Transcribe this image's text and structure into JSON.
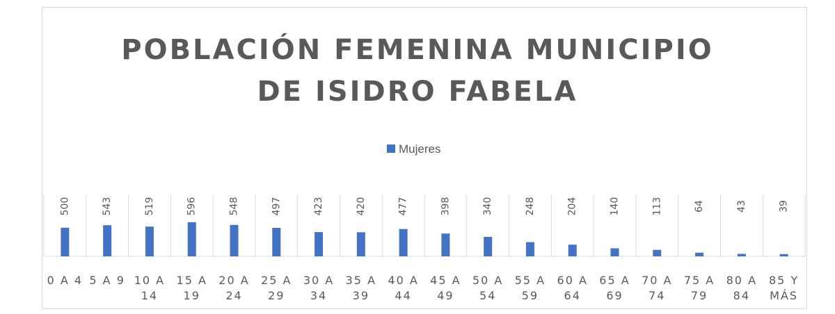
{
  "chart_data": {
    "type": "bar",
    "title": "POBLACIÓN FEMENINA MUNICIPIO DE ISIDRO FABELA",
    "categories": [
      "0 A 4",
      "5 A 9",
      "10 A 14",
      "15 A 19",
      "20 A 24",
      "25 A 29",
      "30 A 34",
      "35 A 39",
      "40 A 44",
      "45 A 49",
      "50 A 54",
      "55 A 59",
      "60 A 64",
      "65 A 69",
      "70 A 74",
      "75 A 79",
      "80 A 84",
      "85 Y MÁS"
    ],
    "series": [
      {
        "name": "Mujeres",
        "color": "#4472c4",
        "values": [
          500,
          543,
          519,
          596,
          548,
          497,
          423,
          420,
          477,
          398,
          340,
          248,
          204,
          140,
          113,
          64,
          43,
          39
        ]
      }
    ],
    "ylim": [
      0,
      1200
    ],
    "legend": "top"
  }
}
